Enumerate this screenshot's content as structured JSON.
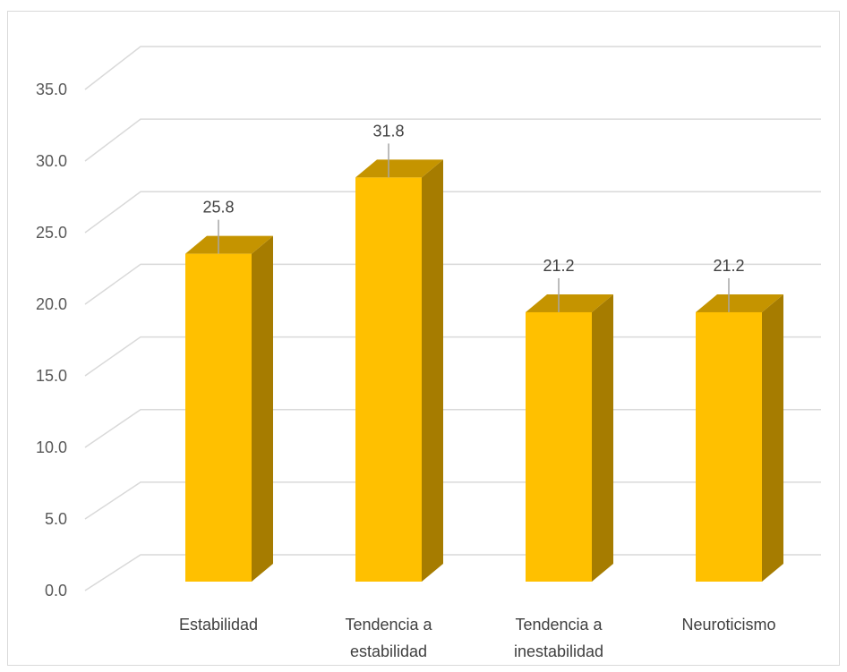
{
  "chart_data": {
    "type": "bar",
    "style": "3d-column",
    "title": "",
    "xlabel": "",
    "ylabel": "",
    "categories": [
      [
        "Estabilidad"
      ],
      [
        "Tendencia a",
        "estabilidad"
      ],
      [
        "Tendencia a",
        "inestabilidad"
      ],
      [
        "Neuroticismo"
      ]
    ],
    "values": [
      25.8,
      31.8,
      21.2,
      21.2
    ],
    "data_labels": [
      "25.8",
      "31.8",
      "21.2",
      "21.2"
    ],
    "ylim": [
      0,
      35
    ],
    "yticks": [
      "0.0",
      "5.0",
      "10.0",
      "15.0",
      "20.0",
      "25.0",
      "30.0",
      "35.0"
    ],
    "grid": true,
    "legend": "none",
    "colors": {
      "bar_front": "#ffc000",
      "bar_side": "#a67c00",
      "bar_top": "#c59400",
      "grid": "#d9d9d9",
      "leader": "#a6a6a6"
    }
  }
}
